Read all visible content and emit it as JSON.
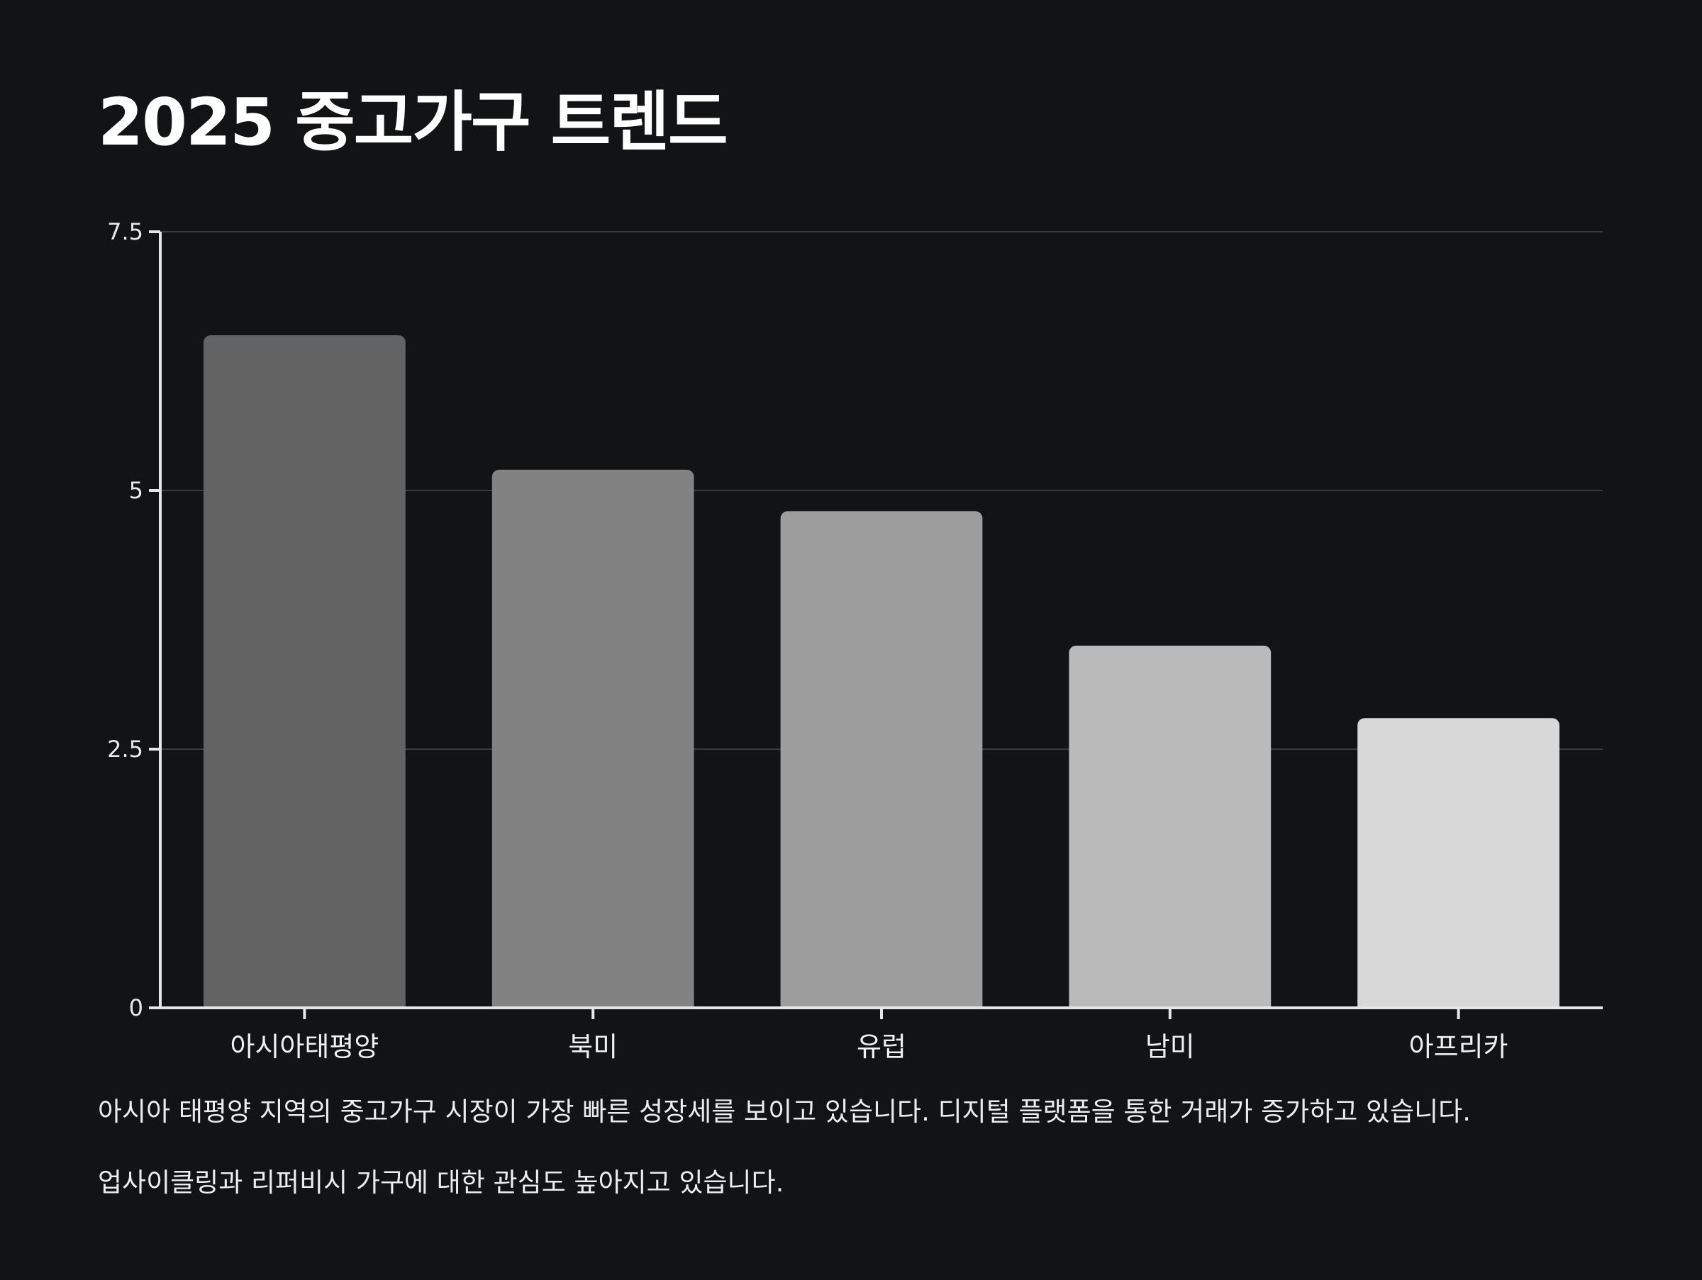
{
  "title": "2025 중고가구 트렌드",
  "chart_data": {
    "type": "bar",
    "categories": [
      "아시아태평양",
      "북미",
      "유럽",
      "남미",
      "아프리카"
    ],
    "values": [
      6.5,
      5.2,
      4.8,
      3.5,
      2.8
    ],
    "ylim": [
      0,
      7.5
    ],
    "yticks": [
      0,
      2.5,
      5,
      7.5
    ],
    "ytick_labels": [
      "0",
      "2.5",
      "5",
      "7.5"
    ],
    "xlabel": "",
    "ylabel": "",
    "grid": true,
    "bar_colors": [
      "#636363",
      "#828282",
      "#9d9d9d",
      "#bababa",
      "#d8d8d8"
    ]
  },
  "captions": {
    "line1": "아시아 태평양 지역의 중고가구 시장이 가장 빠른 성장세를 보이고 있습니다. 디지털 플랫폼을 통한 거래가 증가하고 있습니다.",
    "line2": "업사이클링과 리퍼비시 가구에 대한 관심도 높아지고 있습니다."
  },
  "colors": {
    "background": "#121315",
    "axis": "#e6e6e6",
    "grid": "#3a3b3d"
  }
}
